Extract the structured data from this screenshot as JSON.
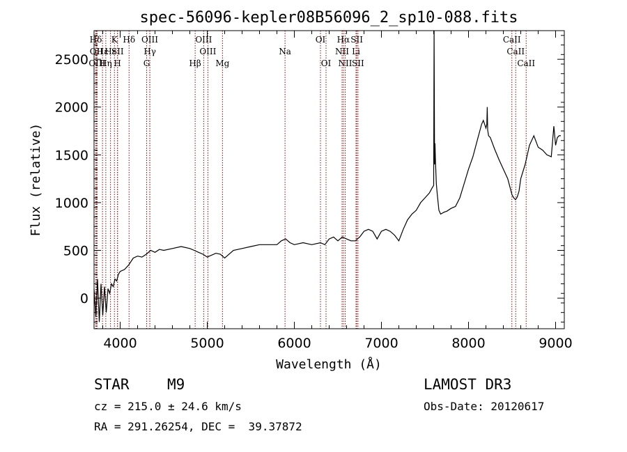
{
  "chart_data": {
    "type": "line",
    "title": "spec-56096-kepler08B56096_2_sp10-088.fits",
    "xlabel": "Wavelength (Å)",
    "ylabel": "Flux (relative)",
    "xlim": [
      3700,
      9100
    ],
    "ylim": [
      -320,
      2800
    ],
    "xticks": [
      4000,
      5000,
      6000,
      7000,
      8000,
      9000
    ],
    "yticks": [
      0,
      500,
      1000,
      1500,
      2000,
      2500
    ],
    "series": [
      {
        "name": "spectrum",
        "x": [
          3700,
          3720,
          3740,
          3760,
          3780,
          3800,
          3820,
          3840,
          3860,
          3880,
          3900,
          3920,
          3940,
          3960,
          3980,
          4000,
          4050,
          4100,
          4150,
          4200,
          4250,
          4300,
          4350,
          4400,
          4450,
          4500,
          4600,
          4700,
          4800,
          4850,
          4900,
          4950,
          5000,
          5100,
          5150,
          5200,
          5300,
          5400,
          5500,
          5600,
          5700,
          5800,
          5850,
          5900,
          5950,
          6000,
          6100,
          6200,
          6300,
          6350,
          6400,
          6450,
          6500,
          6550,
          6600,
          6650,
          6700,
          6750,
          6800,
          6850,
          6900,
          6950,
          7000,
          7050,
          7100,
          7150,
          7200,
          7250,
          7300,
          7350,
          7400,
          7450,
          7500,
          7550,
          7580,
          7600,
          7605,
          7610,
          7615,
          7620,
          7630,
          7640,
          7660,
          7680,
          7700,
          7720,
          7750,
          7800,
          7850,
          7900,
          7950,
          8000,
          8050,
          8100,
          8150,
          8170,
          8200,
          8210,
          8215,
          8220,
          8230,
          8250,
          8300,
          8350,
          8400,
          8450,
          8500,
          8520,
          8540,
          8560,
          8580,
          8600,
          8650,
          8700,
          8750,
          8800,
          8850,
          8900,
          8950,
          8980,
          9000,
          9020,
          9040,
          9060
        ],
        "values": [
          100,
          -200,
          200,
          -250,
          150,
          -180,
          120,
          -150,
          100,
          50,
          150,
          120,
          200,
          180,
          250,
          280,
          300,
          350,
          420,
          440,
          430,
          460,
          500,
          480,
          510,
          500,
          520,
          540,
          520,
          500,
          480,
          460,
          430,
          470,
          460,
          420,
          500,
          520,
          540,
          560,
          560,
          560,
          600,
          620,
          580,
          560,
          580,
          560,
          580,
          560,
          620,
          640,
          600,
          640,
          620,
          600,
          600,
          640,
          700,
          720,
          700,
          620,
          700,
          720,
          700,
          660,
          600,
          720,
          820,
          880,
          920,
          1000,
          1050,
          1100,
          1150,
          1180,
          2800,
          1400,
          1620,
          1450,
          1200,
          1100,
          920,
          880,
          890,
          900,
          910,
          940,
          960,
          1050,
          1200,
          1350,
          1480,
          1650,
          1820,
          1860,
          1780,
          1820,
          2000,
          1760,
          1700,
          1680,
          1560,
          1450,
          1350,
          1250,
          1080,
          1050,
          1030,
          1060,
          1120,
          1250,
          1400,
          1600,
          1700,
          1580,
          1550,
          1500,
          1480,
          1800,
          1600,
          1680,
          1700,
          1700
        ]
      }
    ],
    "lines": [
      {
        "name": "Hδ",
        "x": 3720,
        "row": 0
      },
      {
        "name": "OII",
        "x": 3727,
        "row": 1
      },
      {
        "name": "OIII",
        "x": 3735,
        "row": 2
      },
      {
        "name": "Hε",
        "x": 3797,
        "row": 1
      },
      {
        "name": "Hη",
        "x": 3835,
        "row": 2
      },
      {
        "name": "K",
        "x": 3934,
        "row": 0
      },
      {
        "name": "Hε",
        "x": 3889,
        "row": 1
      },
      {
        "name": "SII",
        "x": 3970,
        "row": 1
      },
      {
        "name": "H",
        "x": 3969,
        "row": 2
      },
      {
        "name": "Hδ",
        "x": 4102,
        "row": 0
      },
      {
        "name": "OIII",
        "x": 4340,
        "row": 0
      },
      {
        "name": "Hγ",
        "x": 4341,
        "row": 1
      },
      {
        "name": "G",
        "x": 4304,
        "row": 2
      },
      {
        "name": "Hβ",
        "x": 4861,
        "row": 2
      },
      {
        "name": "OIII",
        "x": 4959,
        "row": 0
      },
      {
        "name": "OIII",
        "x": 5007,
        "row": 1
      },
      {
        "name": "Mg",
        "x": 5175,
        "row": 2
      },
      {
        "name": "Na",
        "x": 5893,
        "row": 1
      },
      {
        "name": "OI",
        "x": 6300,
        "row": 0
      },
      {
        "name": "OI",
        "x": 6364,
        "row": 2
      },
      {
        "name": "Hα",
        "x": 6563,
        "row": 0
      },
      {
        "name": "NII",
        "x": 6548,
        "row": 1
      },
      {
        "name": "NII",
        "x": 6584,
        "row": 2
      },
      {
        "name": "SII",
        "x": 6717,
        "row": 0
      },
      {
        "name": "Li",
        "x": 6708,
        "row": 1
      },
      {
        "name": "SII",
        "x": 6731,
        "row": 2
      },
      {
        "name": "CaII",
        "x": 8498,
        "row": 0
      },
      {
        "name": "CaII",
        "x": 8542,
        "row": 1
      },
      {
        "name": "CaII",
        "x": 8662,
        "row": 2
      }
    ]
  },
  "info": {
    "object_class": "STAR",
    "subclass": "M9",
    "survey": "LAMOST DR3",
    "redshift": "cz = 215.0 ± 24.6 km/s",
    "obs_date": "Obs-Date: 20120617",
    "coords": "RA = 291.26254, DEC =  39.37872"
  },
  "colors": {
    "spectrum": "#000000",
    "line_marker": "#a00000",
    "axes": "#000000"
  }
}
